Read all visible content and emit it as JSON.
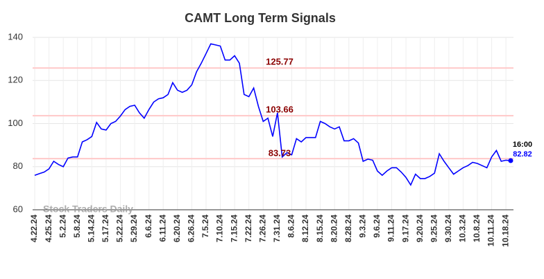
{
  "chart_data": {
    "type": "line",
    "title": "CAMT Long Term Signals",
    "categories": [
      "4.22.24",
      null,
      null,
      "4.25.24",
      null,
      null,
      "5.2.24",
      null,
      null,
      "5.8.24",
      null,
      null,
      "5.14.24",
      null,
      null,
      "5.17.24",
      null,
      null,
      "5.22.24",
      null,
      null,
      "5.29.24",
      null,
      null,
      "6.6.24",
      null,
      null,
      "6.11.24",
      null,
      null,
      "6.20.24",
      null,
      null,
      "6.26.24",
      null,
      null,
      "7.5.24",
      null,
      null,
      "7.10.24",
      null,
      null,
      "7.15.24",
      null,
      null,
      "7.22.24",
      null,
      null,
      "7.26.24",
      null,
      null,
      "7.31.24",
      null,
      null,
      "8.6.24",
      null,
      null,
      "8.12.24",
      null,
      null,
      "8.15.24",
      null,
      null,
      "8.20.24",
      null,
      null,
      "8.28.24",
      null,
      null,
      "9.3.24",
      null,
      null,
      "9.6.24",
      null,
      null,
      "9.11.24",
      null,
      null,
      "9.17.24",
      null,
      null,
      "9.20.24",
      null,
      null,
      "9.25.24",
      null,
      null,
      "9.30.24",
      null,
      null,
      "10.3.24",
      null,
      null,
      "10.8.24",
      null,
      null,
      "10.11.24",
      null,
      null,
      "10.18.24",
      null
    ],
    "values": [
      76,
      76.8,
      77.5,
      79,
      82.5,
      81,
      80,
      84,
      84.5,
      84.5,
      91.5,
      92.5,
      94,
      100.5,
      97.5,
      97,
      100,
      101,
      103.5,
      106.5,
      108,
      108.5,
      105,
      102.5,
      106.5,
      110,
      111.5,
      112,
      113.5,
      119,
      115.5,
      114.5,
      115.5,
      118,
      124,
      128,
      132.5,
      137,
      136.5,
      136,
      129.5,
      129.5,
      131.5,
      128,
      113.5,
      112.5,
      116.5,
      108,
      101,
      102.5,
      94,
      105,
      84.5,
      86.5,
      85.5,
      93,
      91.5,
      93.5,
      93.5,
      93.5,
      101,
      100,
      98.5,
      97.5,
      98.5,
      92,
      92,
      93,
      91,
      82.5,
      83.5,
      83,
      78,
      76,
      78,
      79.5,
      79.5,
      77.5,
      75,
      71.5,
      76.5,
      74.5,
      74.5,
      75.5,
      77,
      86,
      82.5,
      79.5,
      76.5,
      78,
      79.5,
      80.5,
      82,
      81.5,
      80.5,
      79.5,
      84.5,
      87.5,
      82.5,
      83,
      82.82
    ],
    "color": "#0000ff",
    "ylim": [
      60,
      140
    ],
    "yticks": [
      60,
      80,
      100,
      120,
      140
    ],
    "grid": true,
    "levels": [
      125.77,
      103.66,
      83.73
    ],
    "level_color": "#ffc8c8",
    "level_label_color": "#8b0000",
    "last_time": "16:00",
    "watermark": "Stock Traders Daily"
  }
}
